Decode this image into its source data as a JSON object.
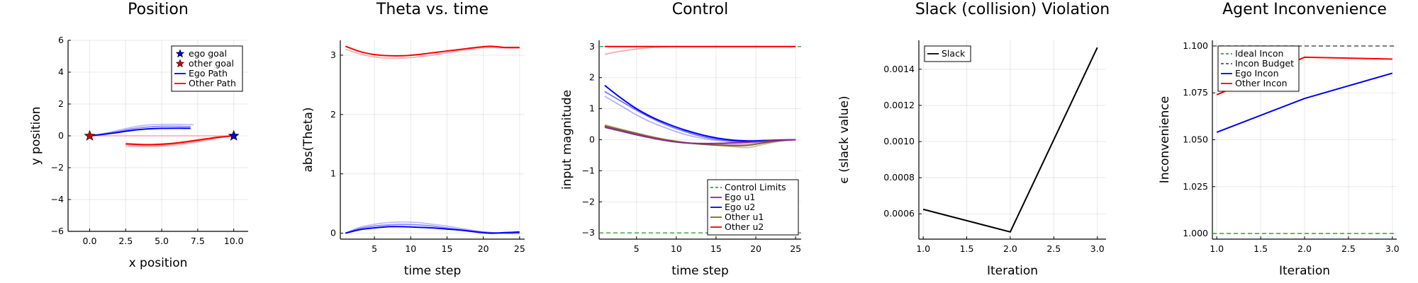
{
  "chart_data": [
    {
      "type": "line",
      "title": "Position",
      "xlabel": "x position",
      "ylabel": "y position",
      "xlim": [
        -1.5,
        11.0
      ],
      "ylim": [
        -6,
        6
      ],
      "xticks": [
        0.0,
        2.5,
        5.0,
        7.5,
        10.0
      ],
      "xtick_labels": [
        "0.0",
        "2.5",
        "5.0",
        "7.5",
        "10.0"
      ],
      "yticks": [
        -6,
        -4,
        -2,
        0,
        2,
        4,
        6
      ],
      "ytick_labels": [
        "−6",
        "−4",
        "−2",
        "0",
        "2",
        "4",
        "6"
      ],
      "grid": true,
      "legend_position": "top-right",
      "legend": [
        {
          "label": "ego goal",
          "kind": "star",
          "color": "#0000cc"
        },
        {
          "label": "other goal",
          "kind": "star",
          "color": "#cc0000"
        },
        {
          "label": "Ego Path",
          "kind": "line",
          "color": "#0000ff"
        },
        {
          "label": "Other Path",
          "kind": "line",
          "color": "#ff0000"
        }
      ],
      "markers": [
        {
          "name": "ego goal",
          "x": 10.0,
          "y": 0.0,
          "color": "#0000cc"
        },
        {
          "name": "other goal",
          "x": 0.0,
          "y": 0.0,
          "color": "#cc0000"
        }
      ],
      "series": [
        {
          "color": "#0000ff",
          "opacity": 0.25,
          "x": [
            0,
            1,
            2,
            3,
            4,
            5,
            6,
            7.2
          ],
          "y": [
            0,
            0.15,
            0.35,
            0.55,
            0.68,
            0.72,
            0.72,
            0.7
          ]
        },
        {
          "color": "#0000ff",
          "opacity": 0.45,
          "x": [
            0,
            1,
            2,
            3,
            4,
            5,
            6,
            7.0
          ],
          "y": [
            0,
            0.12,
            0.28,
            0.45,
            0.55,
            0.6,
            0.6,
            0.58
          ]
        },
        {
          "color": "#0000ff",
          "opacity": 1.0,
          "x": [
            0,
            1,
            2,
            3,
            4,
            5,
            6,
            7.0
          ],
          "y": [
            0,
            0.1,
            0.22,
            0.35,
            0.43,
            0.47,
            0.48,
            0.47
          ]
        },
        {
          "color": "#ff0000",
          "opacity": 0.25,
          "x": [
            2.5,
            4,
            5,
            6,
            7,
            8,
            9,
            10
          ],
          "y": [
            -0.65,
            -0.68,
            -0.65,
            -0.58,
            -0.45,
            -0.3,
            -0.12,
            0
          ]
        },
        {
          "color": "#ff0000",
          "opacity": 0.45,
          "x": [
            2.5,
            4,
            5,
            6,
            7,
            8,
            9,
            10
          ],
          "y": [
            -0.55,
            -0.6,
            -0.58,
            -0.5,
            -0.38,
            -0.24,
            -0.1,
            0
          ]
        },
        {
          "color": "#ff0000",
          "opacity": 1.0,
          "x": [
            2.5,
            4,
            5,
            6,
            7,
            8,
            9,
            10
          ],
          "y": [
            -0.5,
            -0.55,
            -0.52,
            -0.45,
            -0.33,
            -0.2,
            -0.08,
            0
          ]
        },
        {
          "color": "#ff0000",
          "opacity": 0.25,
          "x": [
            0,
            3,
            6,
            10
          ],
          "y": [
            0,
            0,
            0,
            0
          ]
        }
      ]
    },
    {
      "type": "line",
      "title": "Theta vs. time",
      "xlabel": "time step",
      "ylabel": "abs(Theta)",
      "xlim": [
        0.3,
        25.7
      ],
      "ylim": [
        -0.1,
        3.25
      ],
      "xticks": [
        5,
        10,
        15,
        20,
        25
      ],
      "xtick_labels": [
        "5",
        "10",
        "15",
        "20",
        "25"
      ],
      "yticks": [
        0,
        1,
        2,
        3
      ],
      "ytick_labels": [
        "0",
        "1",
        "2",
        "3"
      ],
      "grid": true,
      "legend_position": "none",
      "series": [
        {
          "color": "#ff0000",
          "opacity": 0.3,
          "x": [
            1,
            3,
            5,
            7,
            9,
            11,
            13,
            15,
            17,
            19,
            21,
            23,
            25
          ],
          "y": [
            3.1,
            3.02,
            2.97,
            2.95,
            2.95,
            2.97,
            3.0,
            3.04,
            3.08,
            3.11,
            3.13,
            3.12,
            3.12
          ]
        },
        {
          "color": "#ff0000",
          "opacity": 1.0,
          "x": [
            1,
            3,
            5,
            7,
            9,
            11,
            13,
            15,
            17,
            19,
            21,
            23,
            25
          ],
          "y": [
            3.15,
            3.06,
            3.01,
            2.99,
            2.99,
            3.01,
            3.04,
            3.07,
            3.1,
            3.13,
            3.15,
            3.13,
            3.13
          ]
        },
        {
          "color": "#0000ff",
          "opacity": 0.25,
          "x": [
            1,
            3,
            5,
            7,
            9,
            11,
            13,
            15,
            17,
            19,
            21,
            23,
            25
          ],
          "y": [
            0,
            0.1,
            0.15,
            0.18,
            0.19,
            0.18,
            0.15,
            0.12,
            0.08,
            0.04,
            0.01,
            0.0,
            0.0
          ]
        },
        {
          "color": "#0000ff",
          "opacity": 0.45,
          "x": [
            1,
            3,
            5,
            7,
            9,
            11,
            13,
            15,
            17,
            19,
            21,
            23,
            25
          ],
          "y": [
            0,
            0.08,
            0.12,
            0.14,
            0.15,
            0.14,
            0.12,
            0.09,
            0.06,
            0.03,
            0.01,
            0.0,
            0.0
          ]
        },
        {
          "color": "#0000ff",
          "opacity": 1.0,
          "x": [
            1,
            3,
            5,
            7,
            9,
            11,
            13,
            15,
            17,
            19,
            21,
            23,
            25
          ],
          "y": [
            0,
            0.06,
            0.09,
            0.11,
            0.11,
            0.1,
            0.09,
            0.07,
            0.05,
            0.02,
            0.0,
            0.01,
            0.02
          ]
        }
      ]
    },
    {
      "type": "line",
      "title": "Control",
      "xlabel": "time step",
      "ylabel": "input magnitude",
      "xlim": [
        0.3,
        25.7
      ],
      "ylim": [
        -3.2,
        3.2
      ],
      "xticks": [
        5,
        10,
        15,
        20,
        25
      ],
      "xtick_labels": [
        "5",
        "10",
        "15",
        "20",
        "25"
      ],
      "yticks": [
        -3,
        -2,
        -1,
        0,
        1,
        2,
        3
      ],
      "ytick_labels": [
        "−3",
        "−2",
        "−1",
        "0",
        "1",
        "2",
        "3"
      ],
      "grid": true,
      "legend_position": "bottom-right",
      "legend": [
        {
          "label": "Control Limits",
          "kind": "dash",
          "color": "#3a9a3a"
        },
        {
          "label": "Ego u1",
          "kind": "line",
          "color": "#8b2a8b"
        },
        {
          "label": "Ego u2",
          "kind": "line",
          "color": "#0000ff"
        },
        {
          "label": "Other u1",
          "kind": "line",
          "color": "#7a6a1a"
        },
        {
          "label": "Other u2",
          "kind": "line",
          "color": "#ff0000"
        }
      ],
      "series": [
        {
          "color": "#3a9a3a",
          "opacity": 1.0,
          "dash": true,
          "x": [
            0.3,
            25.7
          ],
          "y": [
            3,
            3
          ]
        },
        {
          "color": "#3a9a3a",
          "opacity": 1.0,
          "dash": true,
          "x": [
            0.3,
            25.7
          ],
          "y": [
            -3,
            -3
          ]
        },
        {
          "color": "#ff0000",
          "opacity": 0.35,
          "x": [
            1,
            3,
            5,
            7,
            9,
            11,
            25
          ],
          "y": [
            2.75,
            2.85,
            2.92,
            2.97,
            3.0,
            3.0,
            3.0
          ]
        },
        {
          "color": "#ff0000",
          "opacity": 1.0,
          "x": [
            1,
            25
          ],
          "y": [
            3.0,
            3.0
          ]
        },
        {
          "color": "#0000ff",
          "opacity": 0.3,
          "x": [
            1,
            3,
            5,
            7,
            9,
            11,
            13,
            15,
            17,
            19,
            21,
            23,
            25
          ],
          "y": [
            1.4,
            1.1,
            0.8,
            0.55,
            0.35,
            0.18,
            0.06,
            -0.02,
            -0.05,
            -0.04,
            -0.02,
            -0.01,
            0.0
          ]
        },
        {
          "color": "#0000ff",
          "opacity": 0.55,
          "x": [
            1,
            3,
            5,
            7,
            9,
            11,
            13,
            15,
            17,
            19,
            21,
            23,
            25
          ],
          "y": [
            1.55,
            1.25,
            0.95,
            0.68,
            0.45,
            0.27,
            0.12,
            0.02,
            -0.04,
            -0.05,
            -0.03,
            -0.01,
            0.0
          ]
        },
        {
          "color": "#0000ff",
          "opacity": 1.0,
          "x": [
            1,
            3,
            5,
            7,
            9,
            11,
            13,
            15,
            17,
            19,
            21,
            23,
            25
          ],
          "y": [
            1.75,
            1.35,
            1.0,
            0.72,
            0.5,
            0.32,
            0.17,
            0.06,
            -0.01,
            -0.04,
            -0.03,
            -0.01,
            0.0
          ]
        },
        {
          "color": "#7a6a1a",
          "opacity": 0.4,
          "x": [
            1,
            3,
            5,
            7,
            9,
            11,
            13,
            15,
            17,
            19,
            21,
            23,
            25
          ],
          "y": [
            0.48,
            0.35,
            0.22,
            0.1,
            0.0,
            -0.08,
            -0.14,
            -0.18,
            -0.22,
            -0.25,
            -0.15,
            -0.05,
            0.0
          ]
        },
        {
          "color": "#7a6a1a",
          "opacity": 1.0,
          "x": [
            1,
            3,
            5,
            7,
            9,
            11,
            13,
            15,
            17,
            19,
            21,
            23,
            25
          ],
          "y": [
            0.45,
            0.32,
            0.2,
            0.08,
            -0.02,
            -0.09,
            -0.14,
            -0.17,
            -0.19,
            -0.18,
            -0.1,
            -0.03,
            0.0
          ]
        },
        {
          "color": "#8b2a8b",
          "opacity": 0.4,
          "x": [
            1,
            3,
            5,
            7,
            9,
            11,
            13,
            15,
            17,
            19,
            21,
            23,
            25
          ],
          "y": [
            0.42,
            0.3,
            0.18,
            0.06,
            -0.03,
            -0.1,
            -0.13,
            -0.15,
            -0.15,
            -0.13,
            -0.08,
            -0.03,
            0.0
          ]
        },
        {
          "color": "#8b2a8b",
          "opacity": 1.0,
          "x": [
            1,
            3,
            5,
            7,
            9,
            11,
            13,
            15,
            17,
            19,
            21,
            23,
            25
          ],
          "y": [
            0.4,
            0.28,
            0.16,
            0.05,
            -0.04,
            -0.1,
            -0.12,
            -0.12,
            -0.1,
            -0.08,
            -0.05,
            -0.02,
            0.0
          ]
        }
      ]
    },
    {
      "type": "line",
      "title": "Slack (collision) Violation",
      "xlabel": "Iteration",
      "ylabel": "ϵ (slack value)",
      "xlim": [
        0.95,
        3.1
      ],
      "ylim": [
        0.00046,
        0.00156
      ],
      "xticks": [
        1.0,
        1.5,
        2.0,
        2.5,
        3.0
      ],
      "xtick_labels": [
        "1.0",
        "1.5",
        "2.0",
        "2.5",
        "3.0"
      ],
      "yticks": [
        0.0006,
        0.0008,
        0.001,
        0.0012,
        0.0014
      ],
      "ytick_labels": [
        "0.0006",
        "0.0008",
        "0.0010",
        "0.0012",
        "0.0014"
      ],
      "grid": true,
      "legend_position": "top-left",
      "legend": [
        {
          "label": "Slack",
          "kind": "line",
          "color": "#000000"
        }
      ],
      "series": [
        {
          "color": "#000000",
          "opacity": 1.0,
          "x": [
            1.0,
            2.0,
            3.0
          ],
          "y": [
            0.000625,
            0.0005,
            0.00152
          ]
        }
      ]
    },
    {
      "type": "line",
      "title": "Agent Inconvenience",
      "xlabel": "Iteration",
      "ylabel": "Inconvenience",
      "xlim": [
        0.95,
        3.05
      ],
      "ylim": [
        0.997,
        1.103
      ],
      "xticks": [
        1.0,
        1.5,
        2.0,
        2.5,
        3.0
      ],
      "xtick_labels": [
        "1.0",
        "1.5",
        "2.0",
        "2.5",
        "3.0"
      ],
      "yticks": [
        1.0,
        1.025,
        1.05,
        1.075,
        1.1
      ],
      "ytick_labels": [
        "1.000",
        "1.025",
        "1.050",
        "1.075",
        "1.100"
      ],
      "grid": true,
      "legend_position": "top-left",
      "legend": [
        {
          "label": "Ideal Incon",
          "kind": "dash",
          "color": "#3a9a3a"
        },
        {
          "label": "Incon Budget",
          "kind": "dash",
          "color": "#555555"
        },
        {
          "label": "Ego Incon",
          "kind": "line",
          "color": "#0000ff"
        },
        {
          "label": "Other Incon",
          "kind": "line",
          "color": "#ff0000"
        }
      ],
      "series": [
        {
          "color": "#3a9a3a",
          "opacity": 1.0,
          "dash": true,
          "x": [
            0.95,
            3.05
          ],
          "y": [
            1.0,
            1.0
          ]
        },
        {
          "color": "#555555",
          "opacity": 1.0,
          "dash": true,
          "x": [
            0.95,
            3.05
          ],
          "y": [
            1.1,
            1.1
          ]
        },
        {
          "color": "#0000ff",
          "opacity": 1.0,
          "x": [
            1.0,
            2.0,
            3.0
          ],
          "y": [
            1.054,
            1.072,
            1.0855
          ]
        },
        {
          "color": "#ff0000",
          "opacity": 1.0,
          "x": [
            1.0,
            2.0,
            3.0
          ],
          "y": [
            1.074,
            1.094,
            1.093
          ]
        }
      ]
    }
  ]
}
